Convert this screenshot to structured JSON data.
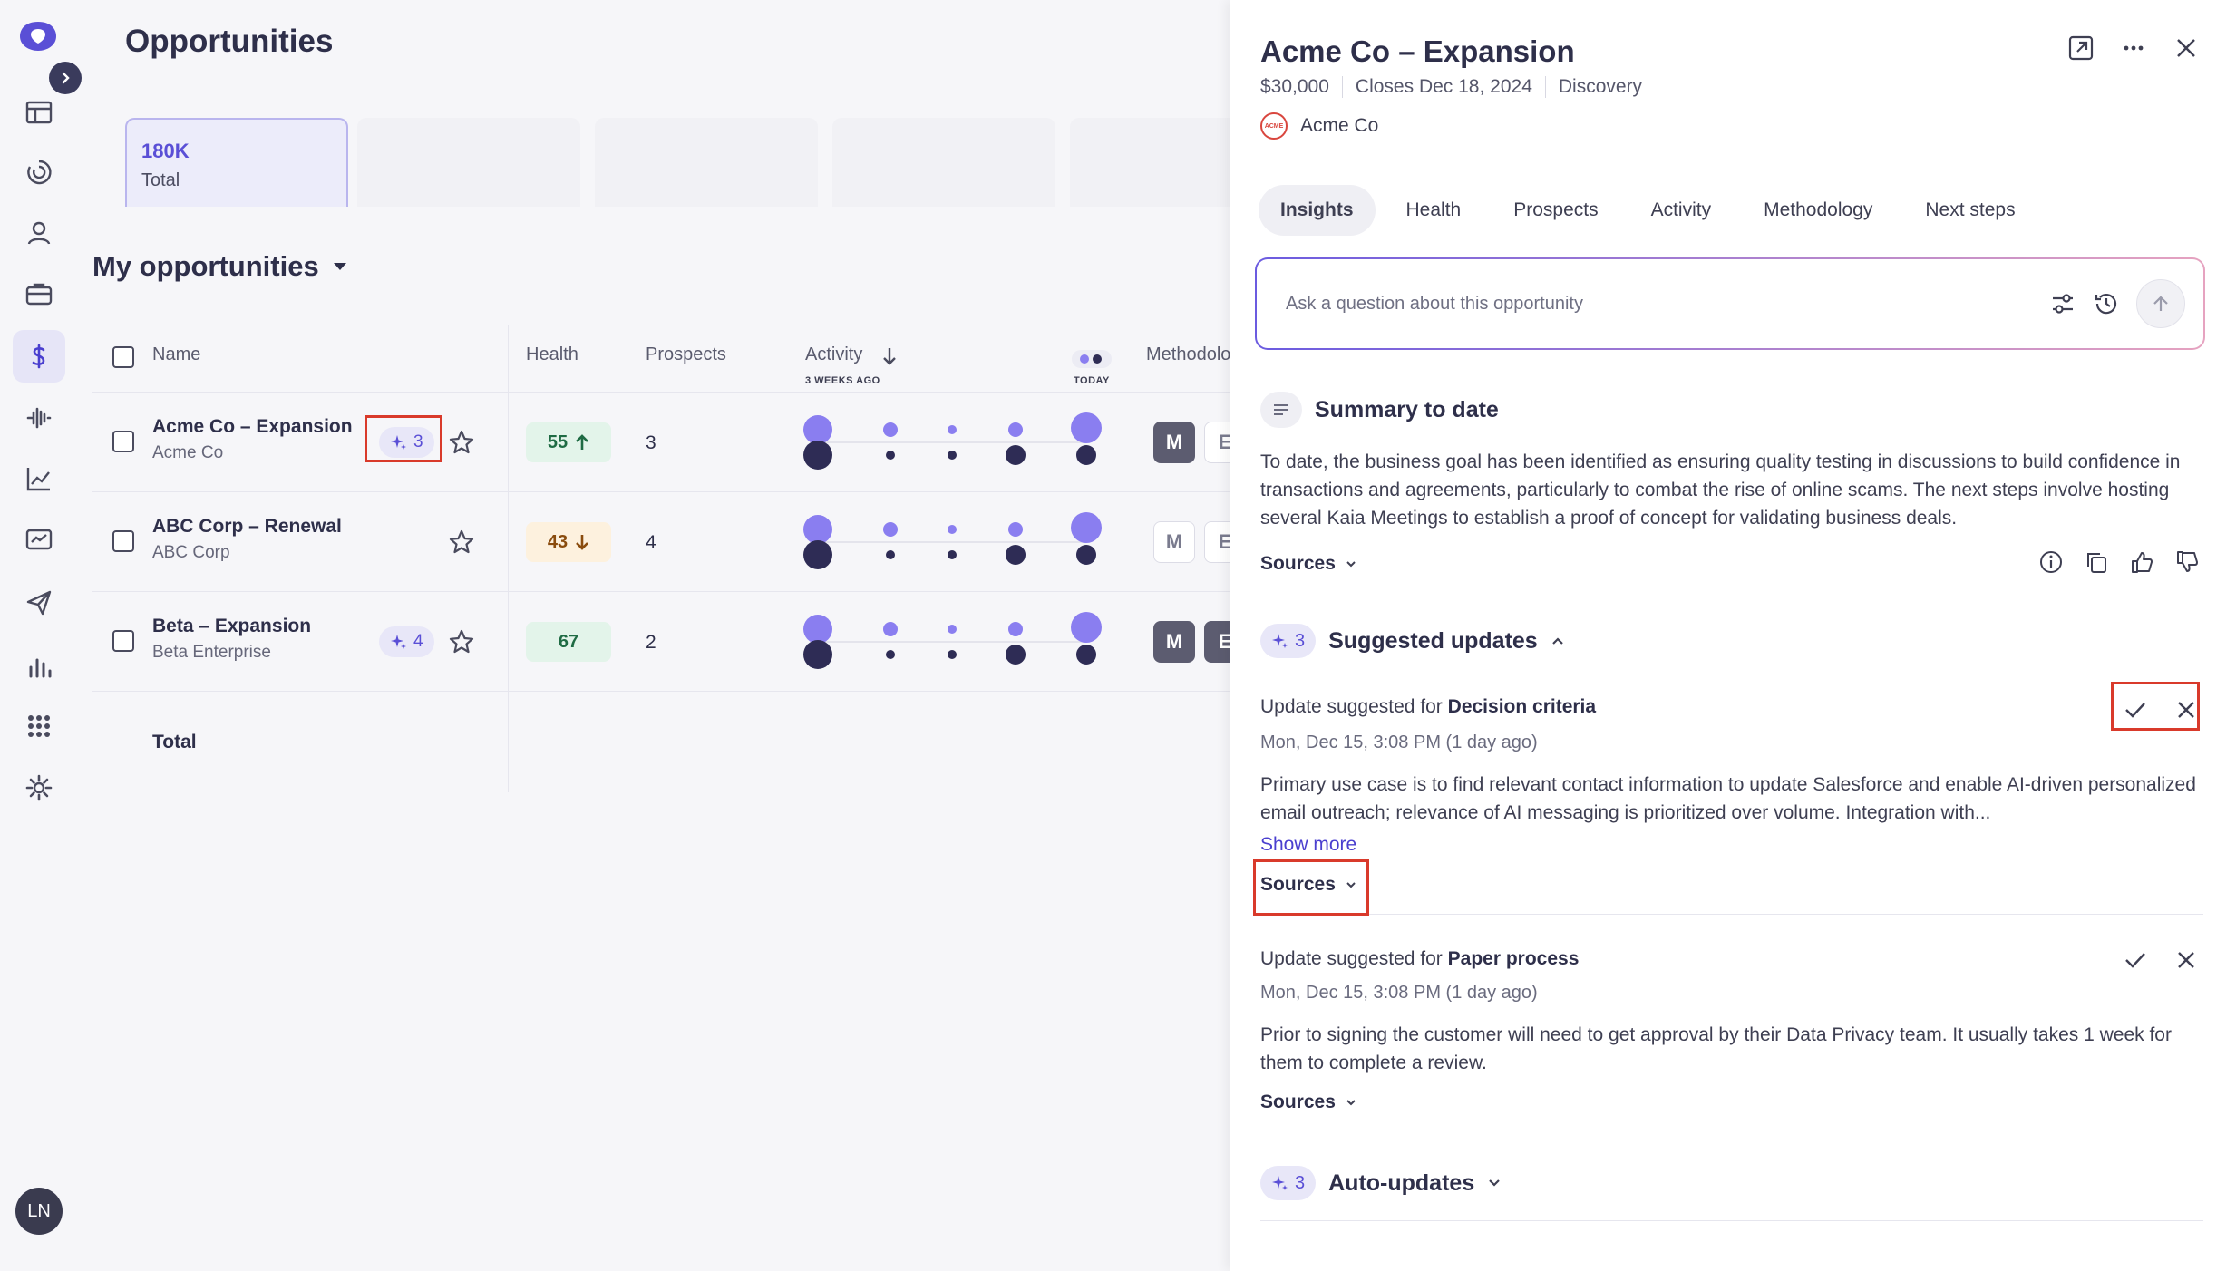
{
  "colors": {
    "accent": "#5a4fd6",
    "highlight": "#d93a2b",
    "health_good_bg": "#e3f4ea",
    "health_warn_bg": "#fdf1de"
  },
  "rail": {
    "items": [
      "logo-icon",
      "layout-icon",
      "activity-icon",
      "user-icon",
      "briefcase-icon",
      "dollar-icon",
      "waveform-icon",
      "chart-line-icon",
      "monitor-chart-icon",
      "send-icon",
      "bar-chart-icon",
      "apps-grid-icon",
      "gear-icon"
    ],
    "avatar_initials": "LN"
  },
  "main": {
    "title": "Opportunities",
    "metric": {
      "value": "180K",
      "label": "Total"
    },
    "section_title": "My opportunities",
    "columns": {
      "name": "Name",
      "health": "Health",
      "prospects": "Prospects",
      "activity": "Activity",
      "activity_left": "3 WEEKS AGO",
      "activity_right": "TODAY",
      "methodology": "Methodolo"
    },
    "rows": [
      {
        "name": "Acme Co – Expansion",
        "account": "Acme Co",
        "suggestions": "3",
        "health": "55",
        "health_trend": "up",
        "prospects": "3",
        "meth": [
          "M",
          "E"
        ]
      },
      {
        "name": "ABC Corp – Renewal",
        "account": "ABC Corp",
        "suggestions": "",
        "health": "43",
        "health_trend": "down",
        "prospects": "4",
        "meth": [
          "M",
          "E"
        ]
      },
      {
        "name": "Beta – Expansion",
        "account": "Beta Enterprise",
        "suggestions": "4",
        "health": "67",
        "health_trend": "",
        "prospects": "2",
        "meth": [
          "M",
          "E"
        ]
      }
    ],
    "total_label": "Total"
  },
  "panel": {
    "title": "Acme Co – Expansion",
    "amount": "$30,000",
    "close_date": "Closes Dec 18, 2024",
    "stage": "Discovery",
    "account": "Acme Co",
    "account_logo_text": "ACME",
    "tabs": [
      "Insights",
      "Health",
      "Prospects",
      "Activity",
      "Methodology",
      "Next steps"
    ],
    "ask_placeholder": "Ask a question about this opportunity",
    "summary": {
      "title": "Summary to date",
      "text": "To date, the business goal has been identified as ensuring quality testing in discussions to build confidence in transactions and agreements, particularly to combat the rise of online scams. The next steps involve hosting several Kaia Meetings to establish a proof of concept for validating business deals.",
      "sources_label": "Sources"
    },
    "suggested": {
      "count": "3",
      "title": "Suggested updates",
      "items": [
        {
          "prefix": "Update suggested for",
          "field": "Decision criteria",
          "date": "Mon, Dec 15, 3:08 PM (1 day ago)",
          "text": "Primary use case is to find relevant contact information to update Salesforce and enable AI-driven personalized email outreach; relevance of AI messaging is prioritized over volume. Integration with...",
          "show_more": "Show more",
          "sources_label": "Sources"
        },
        {
          "prefix": "Update suggested for",
          "field": "Paper process",
          "date": "Mon, Dec 15, 3:08 PM (1 day ago)",
          "text": "Prior to signing the customer will need to get approval by their Data Privacy team. It usually takes 1 week for them to complete a review.",
          "sources_label": "Sources"
        }
      ]
    },
    "auto": {
      "count": "3",
      "title": "Auto-updates"
    }
  }
}
